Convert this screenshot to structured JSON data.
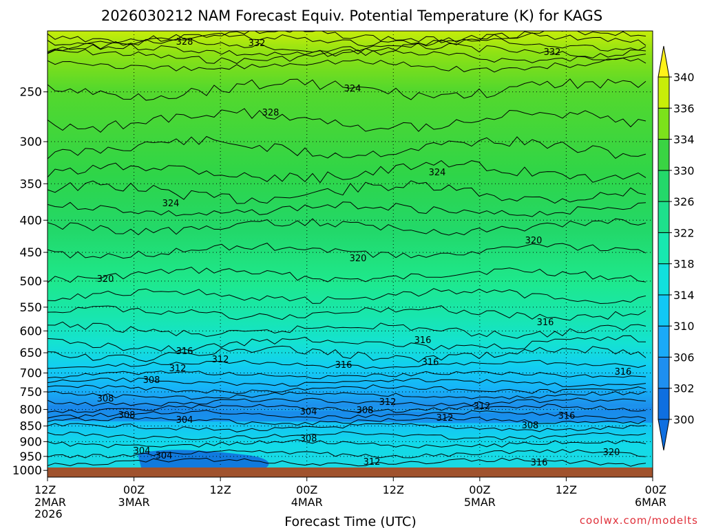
{
  "chart_data": {
    "type": "heatmap",
    "title": "2026030212 NAM Forecast Equiv. Potential Temperature (K) for KAGS",
    "xlabel": "Forecast Time (UTC)",
    "ylabel": "",
    "x_ticks": [
      {
        "label": "12Z",
        "sub": [
          "2MAR",
          "2026"
        ]
      },
      {
        "label": "00Z",
        "sub": [
          "3MAR"
        ]
      },
      {
        "label": "12Z",
        "sub": []
      },
      {
        "label": "00Z",
        "sub": [
          "4MAR"
        ]
      },
      {
        "label": "12Z",
        "sub": []
      },
      {
        "label": "00Z",
        "sub": [
          "5MAR"
        ]
      },
      {
        "label": "12Z",
        "sub": []
      },
      {
        "label": "00Z",
        "sub": [
          "6MAR"
        ]
      }
    ],
    "xlim_hours": [
      0,
      84
    ],
    "y_ticks": [
      250,
      300,
      350,
      400,
      450,
      500,
      550,
      600,
      650,
      700,
      750,
      800,
      850,
      900,
      950,
      1000
    ],
    "ylim_hPa": [
      200,
      1025
    ],
    "y_scale": "log",
    "grid": true,
    "colorbar": {
      "levels": [
        300,
        302,
        306,
        310,
        314,
        318,
        322,
        326,
        330,
        334,
        336,
        340
      ],
      "labels": [
        "300",
        "302",
        "306",
        "310",
        "314",
        "318",
        "322",
        "326",
        "330",
        "334",
        "336",
        "340"
      ],
      "colors": [
        "#0f6fe0",
        "#1e8ff0",
        "#1aaaf8",
        "#12c8f5",
        "#12e0dd",
        "#18e8b0",
        "#1ee08c",
        "#24d86a",
        "#3ad443",
        "#7ce21b",
        "#c8ee08",
        "#fff21a"
      ],
      "placement": "right"
    },
    "contour_labels": [
      "332",
      "332",
      "328",
      "328",
      "324",
      "324",
      "324",
      "320",
      "320",
      "320",
      "316",
      "316",
      "316",
      "316",
      "316",
      "316",
      "312",
      "312",
      "312",
      "312",
      "312",
      "312",
      "308",
      "308",
      "308",
      "308",
      "308",
      "308",
      "304",
      "304",
      "304",
      "304",
      "316",
      "316",
      "320"
    ],
    "surface_color": "#a0522d",
    "credit": "coolwx.com/modelts"
  }
}
